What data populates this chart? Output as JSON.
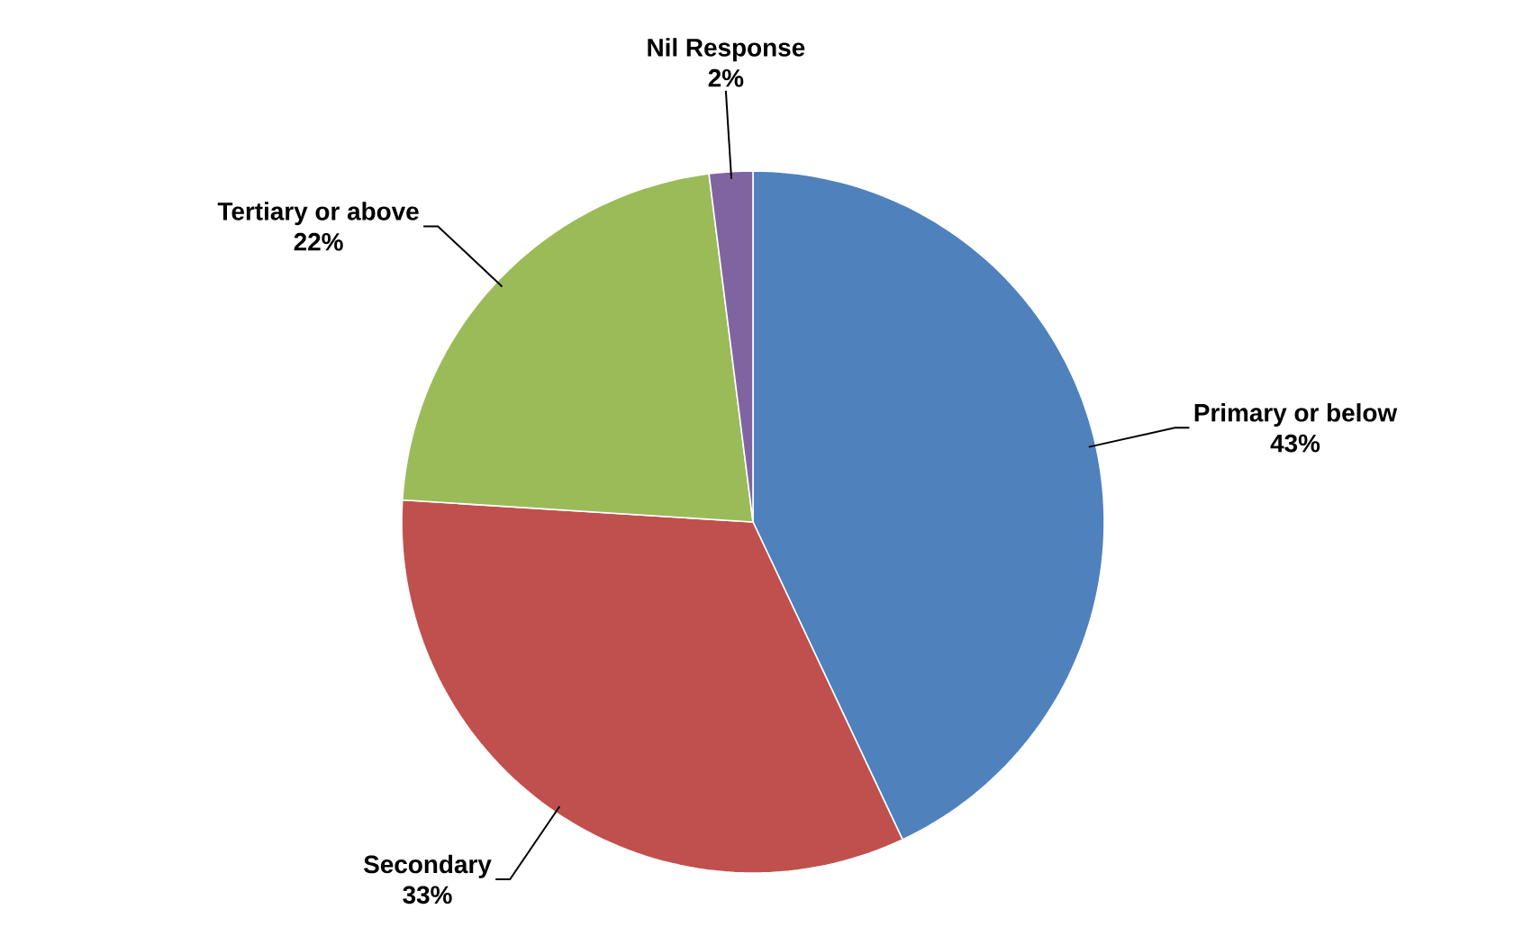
{
  "chart_data": {
    "type": "pie",
    "categories": [
      "Primary or below",
      "Secondary",
      "Tertiary or above",
      "Nil Response"
    ],
    "values": [
      43,
      33,
      22,
      2
    ],
    "value_labels": [
      "43%",
      "33%",
      "22%",
      "2%"
    ],
    "colors": [
      "#4f81bd",
      "#c0504d",
      "#9bbb59",
      "#8064a2"
    ]
  }
}
